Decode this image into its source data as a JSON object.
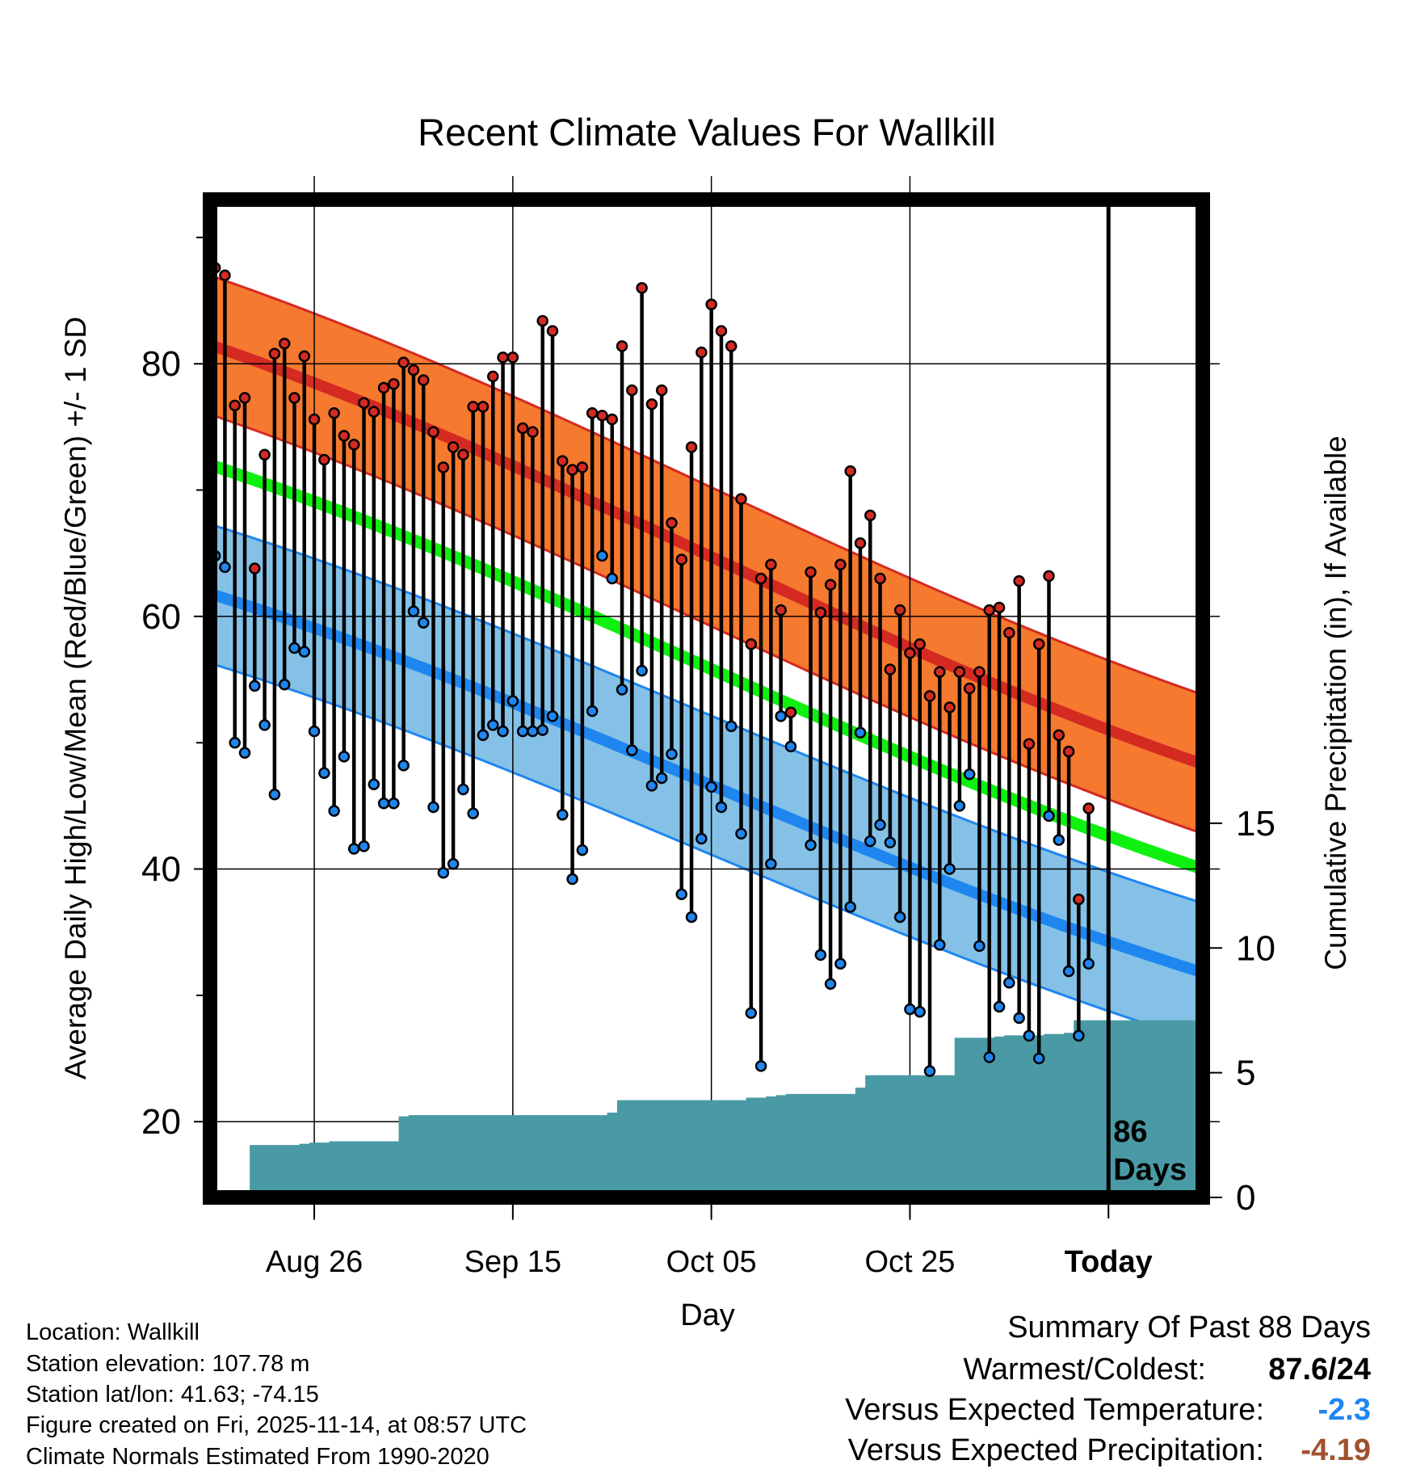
{
  "chart_data": {
    "type": "line",
    "title": "Recent Climate Values For Wallkill",
    "xlabel": "Day",
    "ylabel": "Average Daily High/Low/Mean (Red/Blue/Green) +/- 1 SD",
    "y2label": "Cumulative Precipitation (in), If Available",
    "x_tick_labels": [
      "Aug 26",
      "Sep 15",
      "Oct 05",
      "Oct 25",
      "Today"
    ],
    "x_tick_day_index": [
      10,
      30,
      50,
      70,
      90
    ],
    "y_ticks": [
      20,
      40,
      60,
      80
    ],
    "y_minor_ticks": [
      30,
      50,
      70,
      90
    ],
    "y2_ticks": [
      0,
      5,
      10,
      15
    ],
    "ylim": [
      14,
      93
    ],
    "y2lim": [
      0,
      40
    ],
    "x_range_days": [
      -0.5,
      99.5
    ],
    "grid": true,
    "today_marker_label": "86\nDays",
    "normals": {
      "high_mean": {
        "start": 81.5,
        "end": 48.3
      },
      "high_sd": 5.5,
      "avg_mean": {
        "start": 72.0,
        "end": 40.0
      },
      "low_mean": {
        "start": 61.8,
        "end": 31.8
      },
      "low_sd": 5.5
    },
    "daily_high": [
      87.6,
      87.0,
      76.7,
      77.3,
      63.8,
      72.8,
      80.8,
      81.6,
      77.3,
      80.6,
      75.6,
      72.4,
      76.1,
      74.3,
      73.6,
      76.9,
      76.2,
      78.1,
      78.4,
      80.1,
      79.5,
      78.7,
      74.6,
      71.8,
      73.4,
      72.8,
      76.6,
      76.6,
      79.0,
      80.5,
      80.5,
      74.9,
      74.6,
      83.4,
      82.6,
      72.3,
      71.6,
      71.8,
      76.1,
      75.9,
      75.6,
      81.4,
      77.9,
      86.0,
      76.8,
      77.9,
      67.4,
      64.5,
      73.4,
      80.9,
      84.7,
      82.6,
      81.4,
      69.3,
      57.8,
      63.0,
      64.1,
      60.5,
      52.4,
      null,
      63.5,
      60.3,
      62.5,
      64.1,
      71.5,
      65.8,
      68.0,
      63.0,
      55.8,
      60.5,
      57.1,
      57.8,
      53.7,
      55.6,
      52.8,
      55.6,
      54.3,
      55.6,
      60.5,
      60.7,
      58.7,
      62.8,
      49.9,
      57.8,
      63.2,
      50.6,
      49.3,
      37.6,
      44.8
    ],
    "daily_low": [
      64.8,
      63.9,
      50.0,
      49.2,
      54.5,
      51.4,
      45.9,
      54.6,
      57.5,
      57.2,
      50.9,
      47.6,
      44.6,
      48.9,
      41.6,
      41.8,
      46.7,
      45.2,
      45.2,
      48.2,
      60.4,
      59.5,
      44.9,
      39.7,
      40.4,
      46.3,
      44.4,
      50.6,
      51.4,
      50.9,
      53.3,
      50.9,
      50.9,
      51.0,
      52.1,
      44.3,
      39.2,
      41.5,
      52.5,
      64.8,
      63.0,
      54.2,
      49.4,
      55.7,
      46.6,
      47.2,
      49.1,
      38.0,
      36.2,
      42.4,
      46.5,
      44.9,
      51.3,
      42.8,
      28.6,
      24.4,
      40.4,
      52.1,
      49.7,
      null,
      41.9,
      33.2,
      30.9,
      32.5,
      37.0,
      50.8,
      42.2,
      43.5,
      42.1,
      36.2,
      28.9,
      28.7,
      24.0,
      34.0,
      40.0,
      45.0,
      47.5,
      33.9,
      25.1,
      29.1,
      31.0,
      28.2,
      26.8,
      25.0,
      44.2,
      42.3,
      31.9,
      26.8,
      32.5
    ],
    "cumulative_precip": [
      0,
      0,
      0,
      0,
      2.1,
      2.1,
      2.1,
      2.1,
      2.1,
      2.15,
      2.2,
      2.2,
      2.25,
      2.25,
      2.25,
      2.25,
      2.25,
      2.25,
      2.25,
      3.25,
      3.3,
      3.3,
      3.3,
      3.3,
      3.3,
      3.3,
      3.3,
      3.3,
      3.3,
      3.3,
      3.3,
      3.3,
      3.3,
      3.3,
      3.3,
      3.3,
      3.3,
      3.3,
      3.3,
      3.3,
      3.4,
      3.9,
      3.9,
      3.9,
      3.9,
      3.9,
      3.9,
      3.9,
      3.9,
      3.9,
      3.9,
      3.9,
      3.9,
      3.9,
      4.0,
      4.0,
      4.05,
      4.1,
      4.15,
      4.15,
      4.15,
      4.15,
      4.15,
      4.15,
      4.15,
      4.4,
      4.9,
      4.9,
      4.9,
      4.9,
      4.9,
      4.9,
      4.9,
      4.9,
      4.9,
      6.4,
      6.4,
      6.4,
      6.4,
      6.45,
      6.5,
      6.5,
      6.5,
      6.5,
      6.55,
      6.55,
      6.6,
      7.1,
      7.1,
      7.1,
      7.1,
      7.1,
      7.1,
      7.1,
      7.1,
      7.1,
      7.1,
      7.1,
      7.1,
      7.1
    ]
  },
  "footer": {
    "location": "Location: Wallkill",
    "elevation": "Station elevation: 107.78 m",
    "latlon": "Station lat/lon: 41.63; -74.15",
    "created": "Figure created on Fri, 2025-11-14, at 08:57 UTC",
    "normals": "Climate Normals Estimated From 1990-2020"
  },
  "summary": {
    "title": "Summary Of Past 88 Days",
    "warmest_label": "Warmest/Coldest:",
    "warmest_value": "87.6/24",
    "temp_label": "Versus Expected Temperature:",
    "temp_value": "-2.3",
    "precip_label": "Versus Expected Precipitation:",
    "precip_value": "-4.19"
  },
  "colors": {
    "high_band": "#f5792f",
    "high_line": "#d42a22",
    "low_band": "#85c1e6",
    "low_line": "#1f86f0",
    "mean_line": "#10f010",
    "precip_fill": "#4a9aa5",
    "high_dot": "#d42a22",
    "low_dot": "#1f86f0",
    "temp_anomaly": "#1f86f0",
    "precip_anomaly": "#a0522d"
  }
}
